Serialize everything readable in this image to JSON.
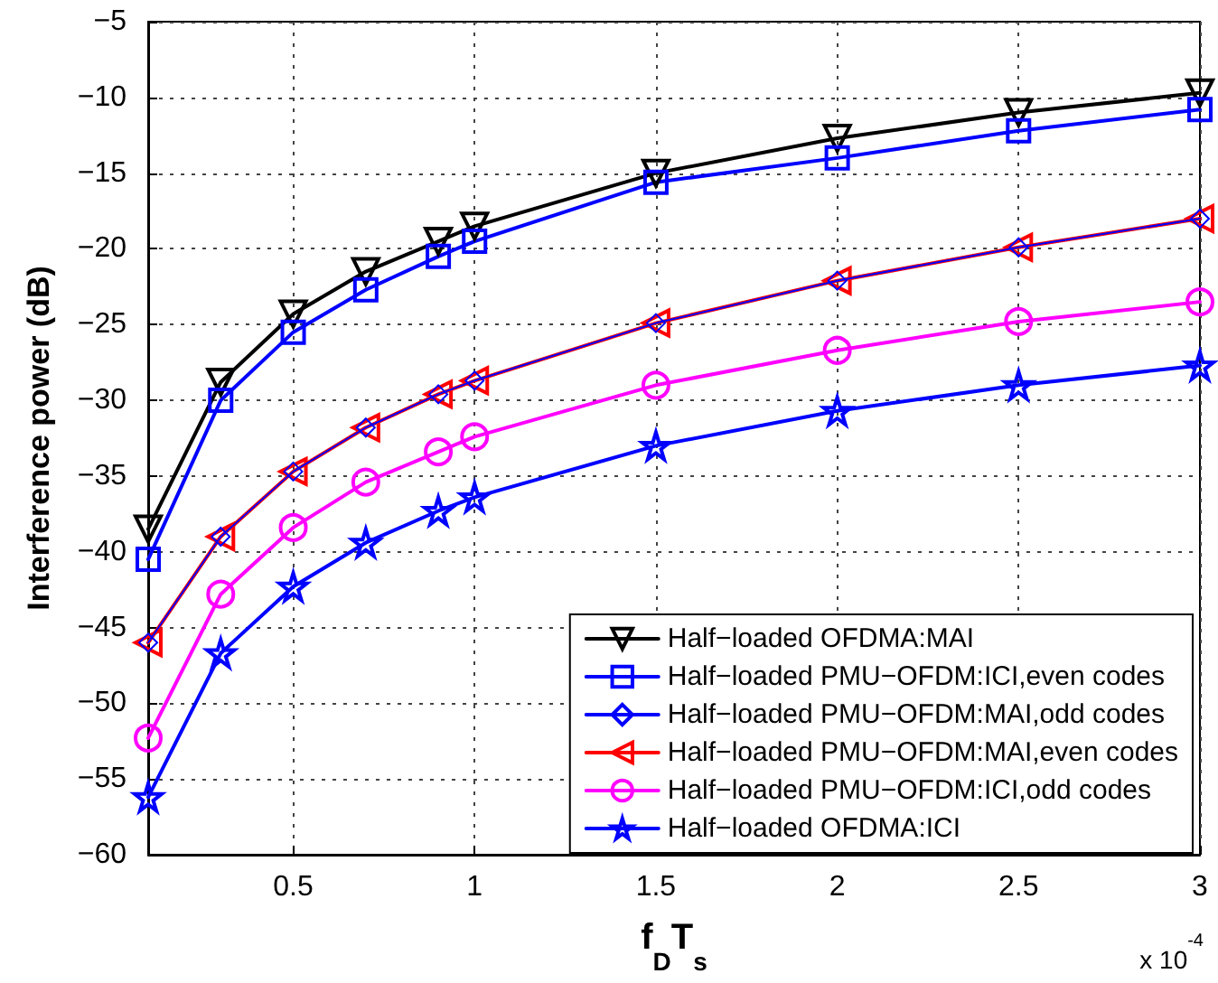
{
  "chart_data": {
    "type": "line",
    "xlabel": "f$_{D}$T$_{s}$",
    "ylabel": "Interference power (dB)",
    "x": [
      0.1,
      0.3,
      0.5,
      0.7,
      0.9,
      1,
      1.5,
      2,
      2.5,
      3
    ],
    "xlim": [
      0.1,
      3
    ],
    "xticks": [
      0.5,
      1,
      1.5,
      2,
      2.5,
      3
    ],
    "ylim": [
      -60,
      -5
    ],
    "yticks": [
      -60,
      -55,
      -50,
      -45,
      -40,
      -35,
      -30,
      -25,
      -20,
      -15,
      -10,
      -5
    ],
    "grid": true,
    "legend": "bottom right",
    "line_style": "solid",
    "annotations": [
      "x 10$^{-4}$"
    ],
    "series": [
      {
        "name": "Half−loaded OFDMA:MAI",
        "color": "#000000",
        "marker": "triangle",
        "values": [
          -38.5,
          -28.8,
          -24.3,
          -21.5,
          -19.5,
          -18.5,
          -15,
          -12.7,
          -11,
          -9.7
        ]
      },
      {
        "name": "Half−loaded PMU−OFDM:ICI,even codes",
        "color": "#0000ff",
        "marker": "square",
        "values": [
          -40.5,
          -30,
          -25.5,
          -22.7,
          -20.5,
          -19.5,
          -15.6,
          -14,
          -12.2,
          -10.8
        ]
      },
      {
        "name": "Half−loaded PMU−OFDM:MAI,odd codes",
        "color": "#0000ff",
        "marker": "diamond",
        "values": [
          -46,
          -39,
          -34.7,
          -31.8,
          -29.6,
          -28.7,
          -24.9,
          -22.1,
          -19.9,
          -18
        ]
      },
      {
        "name": "Half−loaded PMU−OFDM:MAI,even codes",
        "color": "#ff0000",
        "marker": "triangle",
        "values": [
          -46,
          -39,
          -34.7,
          -31.8,
          -29.6,
          -28.7,
          -24.9,
          -22.1,
          -19.9,
          -18
        ]
      },
      {
        "name": "Half−loaded PMU−OFDM:ICI,odd codes",
        "color": "#ff00ff",
        "marker": "circle",
        "values": [
          -52.3,
          -42.8,
          -38.4,
          -35.4,
          -33.4,
          -32.4,
          -29,
          -26.7,
          -24.8,
          -23.5
        ]
      },
      {
        "name": "Half−loaded OFDMA:ICI",
        "color": "#0000ff",
        "marker": "star",
        "values": [
          -56.2,
          -46.7,
          -42.3,
          -39.4,
          -37.3,
          -36.4,
          -33,
          -30.7,
          -29,
          -27.7
        ]
      }
    ]
  }
}
